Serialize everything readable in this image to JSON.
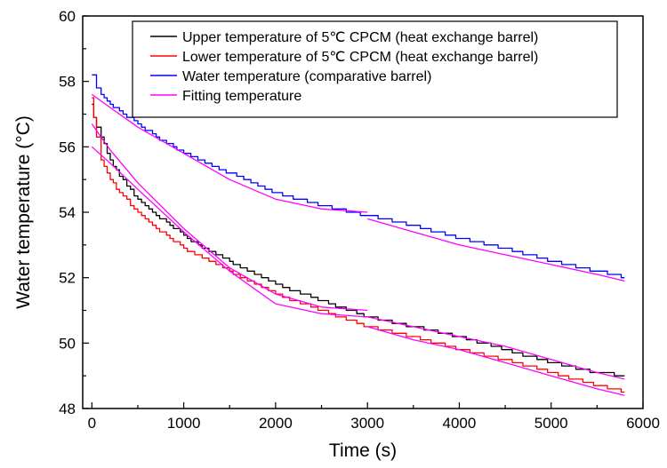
{
  "chart_data": {
    "type": "line",
    "title": "",
    "xlabel": "Time (s)",
    "ylabel": "Water temperature (°C)",
    "xlim": [
      -100,
      6000
    ],
    "ylim": [
      48,
      60
    ],
    "x_ticks": [
      0,
      1000,
      2000,
      3000,
      4000,
      5000,
      6000
    ],
    "y_ticks": [
      48,
      50,
      52,
      54,
      56,
      58,
      60
    ],
    "grid": false,
    "legend_position": "top-right",
    "series": [
      {
        "name": "Upper temperature of 5℃ CPCM (heat exchange barrel)",
        "color": "#000000",
        "style": "step",
        "x": [
          0,
          20,
          50,
          100,
          200,
          300,
          500,
          700,
          1000,
          1200,
          1500,
          2000,
          2500,
          3000,
          3500,
          4000,
          4500,
          5000,
          5500,
          5800
        ],
        "y": [
          57.3,
          56.9,
          56.6,
          56.3,
          55.6,
          55.1,
          54.4,
          53.9,
          53.3,
          52.9,
          52.5,
          51.8,
          51.3,
          50.8,
          50.5,
          50.2,
          49.8,
          49.4,
          49.1,
          49.0
        ]
      },
      {
        "name": "Lower temperature of 5℃ CPCM (heat exchange barrel)",
        "color": "#ff0000",
        "style": "step",
        "x": [
          0,
          20,
          50,
          100,
          200,
          300,
          500,
          700,
          1000,
          1200,
          1500,
          2000,
          2500,
          3000,
          3500,
          4000,
          4500,
          5000,
          5500,
          5800
        ],
        "y": [
          57.5,
          56.9,
          56.3,
          55.6,
          55.0,
          54.6,
          54.0,
          53.5,
          52.9,
          52.6,
          52.2,
          51.5,
          51.0,
          50.5,
          50.2,
          49.8,
          49.5,
          49.1,
          48.7,
          48.5
        ]
      },
      {
        "name": "Water temperature  (comparative barrel)",
        "color": "#0000ff",
        "style": "step",
        "x": [
          0,
          50,
          100,
          200,
          300,
          500,
          700,
          1000,
          1500,
          2000,
          2500,
          3000,
          3500,
          4000,
          4500,
          5000,
          5500,
          5800
        ],
        "y": [
          58.2,
          57.8,
          57.6,
          57.3,
          57.1,
          56.7,
          56.3,
          55.8,
          55.2,
          54.6,
          54.2,
          53.9,
          53.6,
          53.2,
          52.9,
          52.5,
          52.2,
          52.0
        ]
      },
      {
        "name": "Fitting temperature",
        "color": "#ff00ff",
        "style": "smooth",
        "x": [
          0,
          200,
          500,
          1000,
          1500,
          2000,
          2500,
          3000
        ],
        "y": [
          57.6,
          57.2,
          56.6,
          55.8,
          55.0,
          54.4,
          54.1,
          54.0
        ]
      },
      {
        "name": "",
        "color": "#ff00ff",
        "style": "smooth",
        "x": [
          3000,
          3500,
          4000,
          4500,
          5000,
          5500,
          5800
        ],
        "y": [
          53.8,
          53.4,
          53.0,
          52.7,
          52.4,
          52.1,
          51.9
        ]
      },
      {
        "name": "",
        "color": "#ff00ff",
        "style": "smooth",
        "x": [
          0,
          200,
          500,
          1000,
          1500,
          2000,
          2500,
          3000
        ],
        "y": [
          56.7,
          55.9,
          54.9,
          53.5,
          52.3,
          51.5,
          51.1,
          51.0
        ]
      },
      {
        "name": "",
        "color": "#ff00ff",
        "style": "smooth",
        "x": [
          0,
          200,
          500,
          1000,
          1500,
          2000,
          2500,
          3000
        ],
        "y": [
          56.0,
          55.5,
          54.7,
          53.4,
          52.2,
          51.2,
          50.9,
          50.8
        ]
      },
      {
        "name": "",
        "color": "#ff00ff",
        "style": "smooth",
        "x": [
          3000,
          3500,
          4000,
          4500,
          5000,
          5500,
          5800
        ],
        "y": [
          50.8,
          50.5,
          50.2,
          49.9,
          49.5,
          49.1,
          48.9
        ]
      },
      {
        "name": "",
        "color": "#ff00ff",
        "style": "smooth",
        "x": [
          3000,
          3500,
          4000,
          4500,
          5000,
          5500,
          5800
        ],
        "y": [
          50.5,
          50.1,
          49.8,
          49.4,
          49.0,
          48.6,
          48.4
        ]
      }
    ],
    "legend": [
      {
        "label": "Upper temperature of 5℃ CPCM (heat exchange barrel)",
        "color": "#000000"
      },
      {
        "label": "Lower temperature of 5℃ CPCM (heat exchange barrel)",
        "color": "#ff0000"
      },
      {
        "label": "Water temperature  (comparative barrel)",
        "color": "#0000ff"
      },
      {
        "label": "Fitting temperature",
        "color": "#ff00ff"
      }
    ]
  }
}
